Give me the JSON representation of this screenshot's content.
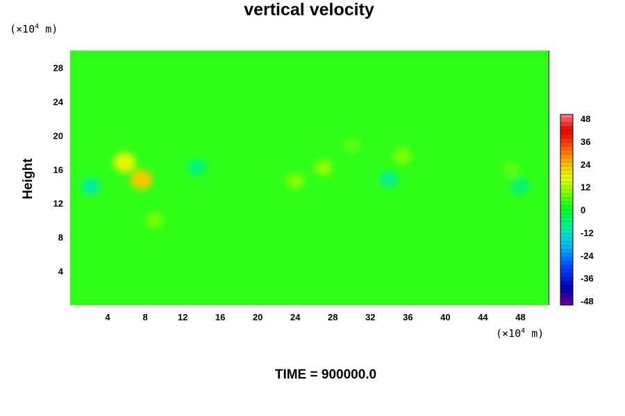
{
  "chart_data": {
    "type": "heatmap",
    "title": "vertical velocity",
    "ylabel": "Height",
    "xunit": "m",
    "xexp": "4",
    "yunit": "m",
    "yexp": "4",
    "xlim": [
      0,
      51
    ],
    "ylim": [
      0,
      30
    ],
    "xticks": [
      4,
      8,
      12,
      16,
      20,
      24,
      28,
      32,
      36,
      40,
      44,
      48
    ],
    "yticks": [
      4,
      8,
      12,
      16,
      20,
      24,
      28
    ],
    "colorbar": {
      "ticks": [
        48,
        36,
        24,
        12,
        0,
        -12,
        -24,
        -36,
        -48
      ],
      "min": -48,
      "max": 48
    },
    "field_background_value": 3,
    "features": [
      {
        "x": 7.6,
        "y": 14.8,
        "value": 22
      },
      {
        "x": 5.8,
        "y": 16.8,
        "value": 17
      },
      {
        "x": 27.0,
        "y": 16.2,
        "value": 10
      },
      {
        "x": 35.4,
        "y": 17.6,
        "value": 9
      },
      {
        "x": 24.0,
        "y": 14.6,
        "value": 9
      },
      {
        "x": 9.0,
        "y": 10.0,
        "value": 8
      },
      {
        "x": 2.2,
        "y": 14.0,
        "value": -10
      },
      {
        "x": 13.5,
        "y": 16.2,
        "value": -7
      },
      {
        "x": 34.0,
        "y": 14.8,
        "value": -8
      },
      {
        "x": 48.0,
        "y": 14.0,
        "value": -6
      },
      {
        "x": 30.0,
        "y": 18.8,
        "value": 6
      },
      {
        "x": 47.0,
        "y": 16.0,
        "value": 6
      }
    ],
    "footer": "TIME = 900000.0"
  }
}
